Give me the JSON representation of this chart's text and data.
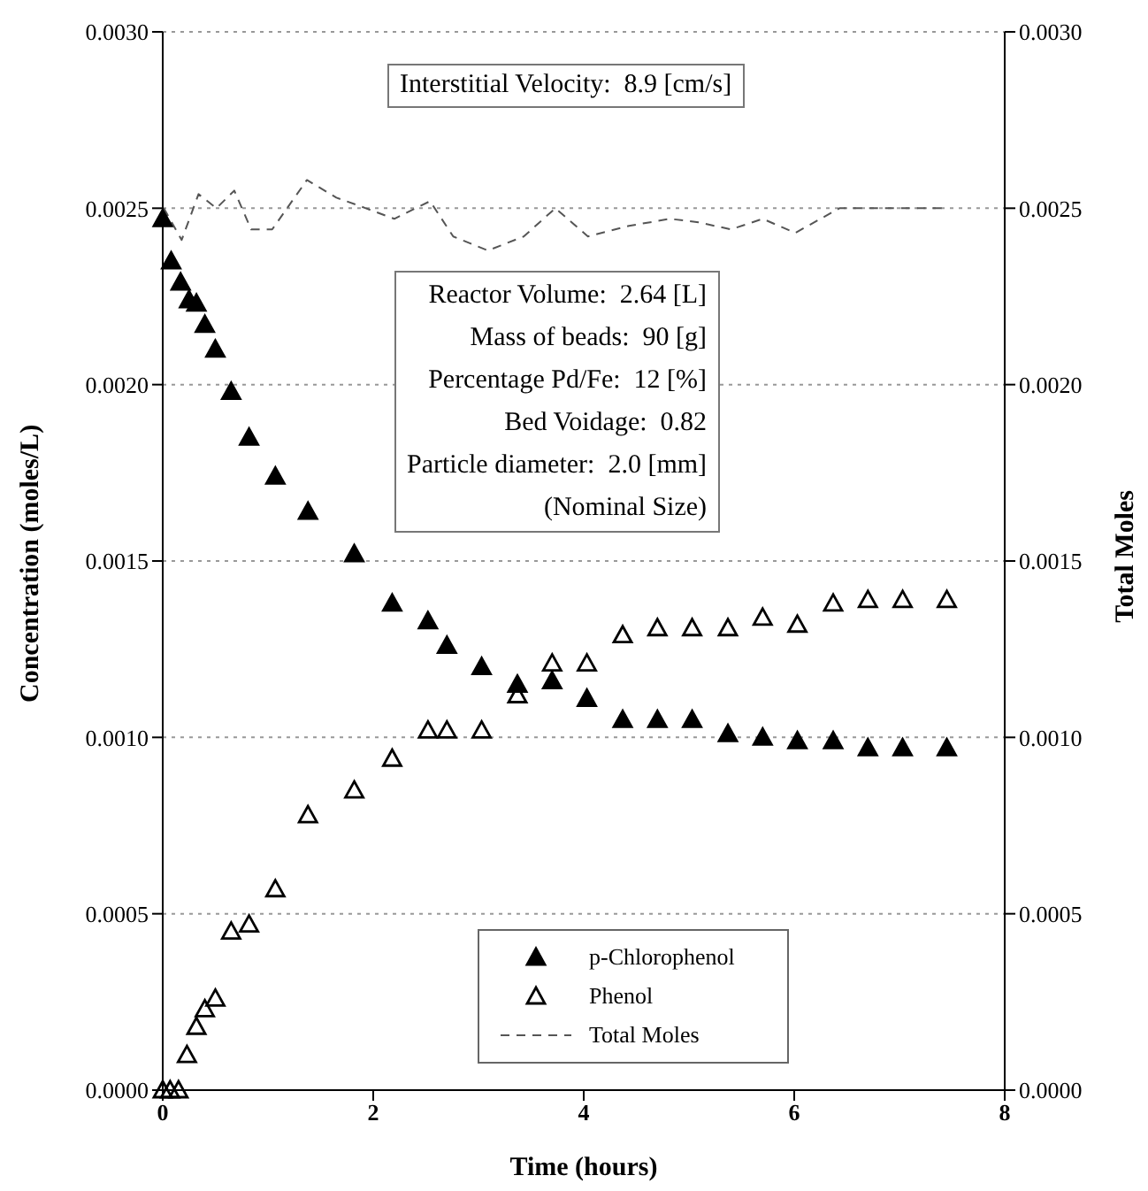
{
  "chart_data": {
    "type": "scatter",
    "xlabel": "Time (hours)",
    "ylabel": "Concentration (moles/L)",
    "y2label": "Total Moles",
    "xlim": [
      0,
      8
    ],
    "xticks": [
      0,
      2,
      4,
      6,
      8
    ],
    "ylim": [
      0,
      0.003
    ],
    "yticks": [
      {
        "value": 0,
        "label": "0.0000"
      },
      {
        "value": 0.0005,
        "label": "0.0005"
      },
      {
        "value": 0.001,
        "label": "0.0010"
      },
      {
        "value": 0.0015,
        "label": "0.0015"
      },
      {
        "value": 0.002,
        "label": "0.0020"
      },
      {
        "value": 0.0025,
        "label": "0.0025"
      },
      {
        "value": 0.003,
        "label": "0.0030"
      }
    ],
    "y2lim": [
      0,
      0.003
    ],
    "y2ticks": [
      {
        "value": 0,
        "label": "0.0000"
      },
      {
        "value": 0.0005,
        "label": "0.0005"
      },
      {
        "value": 0.001,
        "label": "0.0010"
      },
      {
        "value": 0.0015,
        "label": "0.0015"
      },
      {
        "value": 0.002,
        "label": "0.0020"
      },
      {
        "value": 0.0025,
        "label": "0.0025"
      },
      {
        "value": 0.003,
        "label": "0.0030"
      }
    ],
    "grid": true,
    "legend": "bottom",
    "annotations": [
      "Interstitial Velocity:  8.9 [cm/s]",
      "Reactor Volume:  2.64 [L]",
      "Mass of beads:  90 [g]",
      "Percentage Pd/Fe:  12 [%]",
      "Bed Voidage:  0.82",
      "Particle diameter:  2.0 [mm]",
      "(Nominal Size)"
    ],
    "series": [
      {
        "name": "p-Chlorophenol",
        "color": "#000000",
        "marker": "triangle",
        "x": [
          0,
          0.08,
          0.17,
          0.25,
          0.32,
          0.4,
          0.5,
          0.65,
          0.82,
          1.07,
          1.38,
          1.82,
          2.18,
          2.52,
          2.7,
          3.03,
          3.37,
          3.7,
          4.03,
          4.37,
          4.7,
          5.03,
          5.37,
          5.7,
          6.03,
          6.37,
          6.7,
          7.03,
          7.45
        ],
        "values": [
          0.00247,
          0.00235,
          0.00229,
          0.00224,
          0.00223,
          0.00217,
          0.0021,
          0.00198,
          0.00185,
          0.00174,
          0.00164,
          0.00152,
          0.00138,
          0.00133,
          0.00126,
          0.0012,
          0.00115,
          0.00116,
          0.00111,
          0.00105,
          0.00105,
          0.00105,
          0.00101,
          0.001,
          0.00099,
          0.00099,
          0.00097,
          0.00097,
          0.00097
        ]
      },
      {
        "name": "Phenol",
        "color": "#000000",
        "marker": "triangle",
        "x": [
          0,
          0.07,
          0.15,
          0.23,
          0.32,
          0.4,
          0.5,
          0.65,
          0.82,
          1.07,
          1.38,
          1.82,
          2.18,
          2.52,
          2.7,
          3.03,
          3.37,
          3.7,
          4.03,
          4.37,
          4.7,
          5.03,
          5.37,
          5.7,
          6.03,
          6.37,
          6.7,
          7.03,
          7.45
        ],
        "values": [
          0,
          0,
          0,
          0.0001,
          0.00018,
          0.00023,
          0.00026,
          0.00045,
          0.00047,
          0.00057,
          0.00078,
          0.00085,
          0.00094,
          0.00102,
          0.00102,
          0.00102,
          0.00112,
          0.00121,
          0.00121,
          0.00129,
          0.00131,
          0.00131,
          0.00131,
          0.00134,
          0.00132,
          0.00138,
          0.00139,
          0.00139,
          0.00139
        ]
      },
      {
        "name": "Total Moles",
        "type": "line",
        "axis": "y2",
        "line_style": "dashed",
        "marker": "none",
        "color": "#555555",
        "x": [
          0.01,
          0.18,
          0.34,
          0.51,
          0.68,
          0.84,
          1.04,
          1.37,
          1.65,
          1.93,
          2.2,
          2.54,
          2.76,
          3.09,
          3.43,
          3.73,
          4.04,
          4.43,
          4.82,
          5.09,
          5.4,
          5.7,
          6.01,
          6.43,
          6.76,
          7.43
        ],
        "values": [
          0.0025,
          0.00241,
          0.00254,
          0.0025,
          0.00255,
          0.00244,
          0.00244,
          0.00258,
          0.00253,
          0.0025,
          0.00247,
          0.00252,
          0.00242,
          0.00238,
          0.00242,
          0.0025,
          0.00242,
          0.00245,
          0.00247,
          0.00246,
          0.00244,
          0.00247,
          0.00243,
          0.0025,
          0.0025,
          0.0025
        ]
      }
    ]
  }
}
